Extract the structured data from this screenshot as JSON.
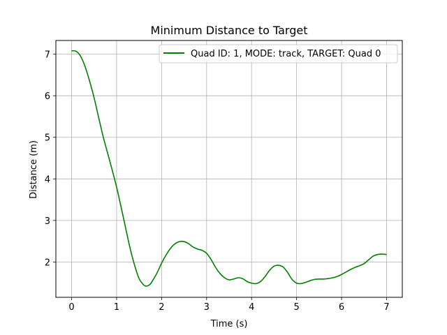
{
  "chart_data": {
    "type": "line",
    "title": "Minimum Distance to Target",
    "xlabel": "Time (s)",
    "ylabel": "Distance (m)",
    "xlim": [
      -0.35,
      7.35
    ],
    "ylim": [
      1.15,
      7.33
    ],
    "xticks": [
      0,
      1,
      2,
      3,
      4,
      5,
      6,
      7
    ],
    "yticks": [
      2,
      3,
      4,
      5,
      6,
      7
    ],
    "grid": true,
    "legend_position": "top-right",
    "series": [
      {
        "name": "Quad ID: 1, MODE: track, TARGET: Quad 0",
        "color": "#008000",
        "x": [
          0,
          0.1,
          0.2,
          0.3,
          0.4,
          0.5,
          0.6,
          0.7,
          0.8,
          0.9,
          1.0,
          1.1,
          1.2,
          1.3,
          1.4,
          1.5,
          1.6,
          1.65,
          1.7,
          1.75,
          1.8,
          1.9,
          2.0,
          2.1,
          2.2,
          2.3,
          2.4,
          2.5,
          2.6,
          2.7,
          2.8,
          2.9,
          3.0,
          3.1,
          3.2,
          3.3,
          3.4,
          3.5,
          3.6,
          3.7,
          3.8,
          3.9,
          4.0,
          4.1,
          4.2,
          4.3,
          4.4,
          4.5,
          4.6,
          4.7,
          4.8,
          4.9,
          5.0,
          5.1,
          5.2,
          5.3,
          5.4,
          5.5,
          5.6,
          5.7,
          5.8,
          5.9,
          6.0,
          6.1,
          6.2,
          6.3,
          6.4,
          6.5,
          6.6,
          6.7,
          6.8,
          6.9,
          7.0
        ],
        "y": [
          7.08,
          7.07,
          6.95,
          6.7,
          6.35,
          5.95,
          5.48,
          5.02,
          4.62,
          4.22,
          3.8,
          3.32,
          2.82,
          2.33,
          1.92,
          1.6,
          1.45,
          1.42,
          1.43,
          1.47,
          1.55,
          1.74,
          1.97,
          2.17,
          2.33,
          2.44,
          2.49,
          2.49,
          2.44,
          2.36,
          2.31,
          2.28,
          2.21,
          2.06,
          1.87,
          1.72,
          1.62,
          1.57,
          1.59,
          1.62,
          1.6,
          1.53,
          1.49,
          1.48,
          1.53,
          1.65,
          1.8,
          1.9,
          1.92,
          1.88,
          1.75,
          1.58,
          1.49,
          1.48,
          1.51,
          1.55,
          1.58,
          1.59,
          1.59,
          1.6,
          1.62,
          1.65,
          1.7,
          1.76,
          1.82,
          1.87,
          1.91,
          1.96,
          2.05,
          2.14,
          2.18,
          2.19,
          2.18
        ]
      }
    ]
  }
}
